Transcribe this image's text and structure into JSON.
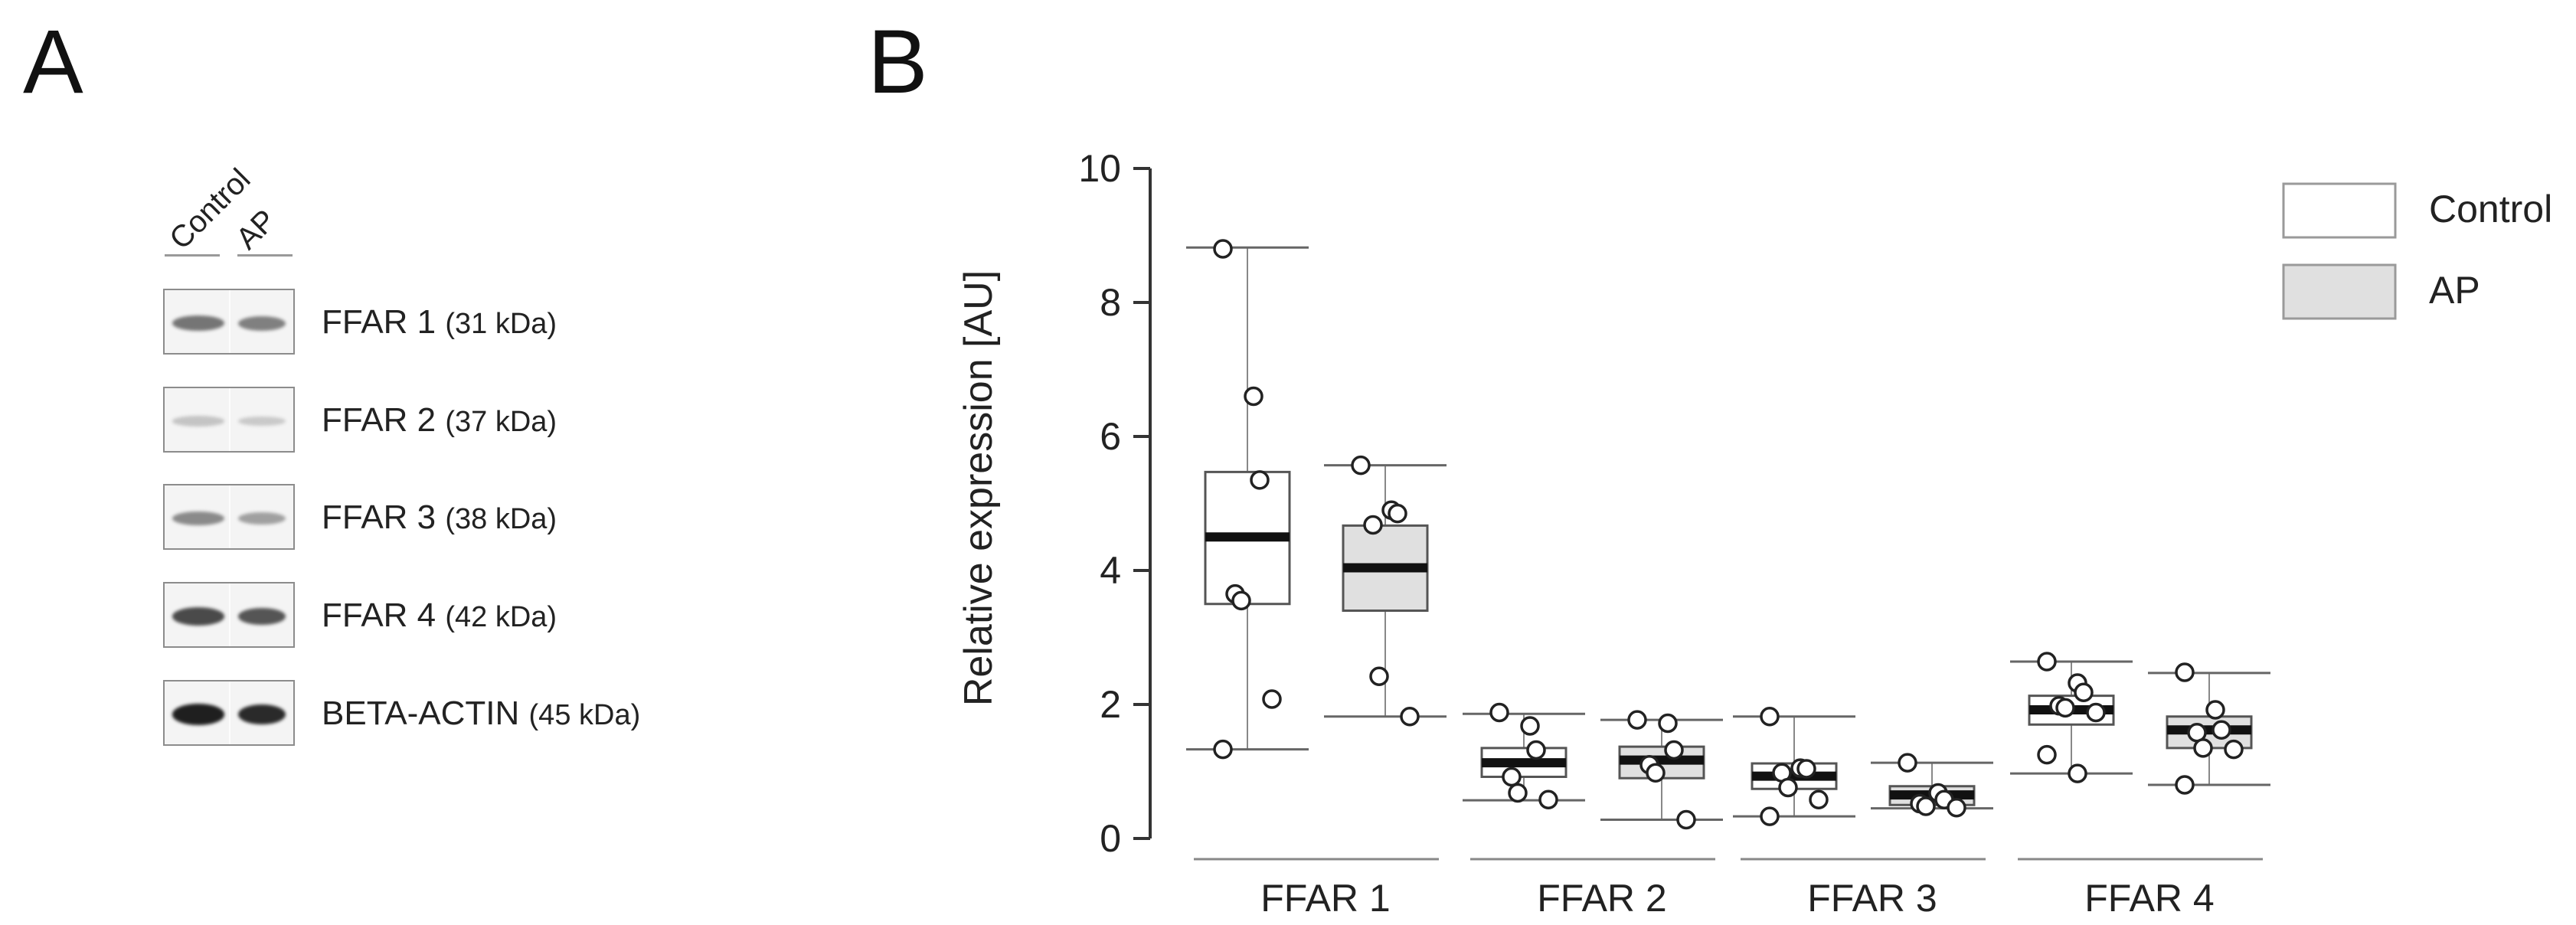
{
  "panel_a": {
    "letter": "A",
    "columns": [
      "Control",
      "AP"
    ],
    "rows": [
      {
        "protein": "FFAR 1",
        "mass": "(31 kDa)",
        "band_intensity": [
          0.55,
          0.5
        ]
      },
      {
        "protein": "FFAR 2",
        "mass": "(37 kDa)",
        "band_intensity": [
          0.18,
          0.16
        ]
      },
      {
        "protein": "FFAR 3",
        "mass": "(38 kDa)",
        "band_intensity": [
          0.45,
          0.35
        ]
      },
      {
        "protein": "FFAR 4",
        "mass": "(42 kDa)",
        "band_intensity": [
          0.75,
          0.7
        ]
      },
      {
        "protein": "BETA-ACTIN",
        "mass": "(45 kDa)",
        "band_intensity": [
          0.95,
          0.9
        ]
      }
    ]
  },
  "panel_b": {
    "letter": "B"
  },
  "chart_data": {
    "type": "box",
    "title": "",
    "xlabel": "",
    "ylabel": "Relative expression  [AU]",
    "ylim": [
      0,
      10
    ],
    "yticks": [
      0,
      2,
      4,
      6,
      8,
      10
    ],
    "categories": [
      "FFAR 1",
      "FFAR 2",
      "FFAR 3",
      "FFAR 4"
    ],
    "grid": false,
    "legend_position": "top-right",
    "series": [
      {
        "name": "Control",
        "color": "#ffffff",
        "boxes": [
          {
            "min": 1.33,
            "q1": 3.5,
            "median": 4.5,
            "q3": 5.47,
            "max": 8.82,
            "points": [
              8.8,
              6.6,
              5.35,
              3.65,
              3.55,
              2.08,
              1.33
            ]
          },
          {
            "min": 0.57,
            "q1": 0.92,
            "median": 1.13,
            "q3": 1.35,
            "max": 1.86,
            "points": [
              1.88,
              1.68,
              1.32,
              0.92,
              0.68,
              0.58
            ]
          },
          {
            "min": 0.33,
            "q1": 0.74,
            "median": 0.93,
            "q3": 1.12,
            "max": 1.82,
            "points": [
              1.82,
              1.05,
              1.04,
              0.98,
              0.76,
              0.58,
              0.33
            ]
          },
          {
            "min": 0.97,
            "q1": 1.7,
            "median": 1.92,
            "q3": 2.13,
            "max": 2.64,
            "points": [
              2.64,
              2.32,
              2.18,
              1.98,
              1.95,
              1.88,
              1.25,
              0.97
            ]
          }
        ]
      },
      {
        "name": "AP",
        "color": "#e0e0e0",
        "boxes": [
          {
            "min": 1.82,
            "q1": 3.4,
            "median": 4.04,
            "q3": 4.67,
            "max": 5.57,
            "points": [
              5.57,
              4.9,
              4.85,
              4.68,
              2.42,
              1.82
            ]
          },
          {
            "min": 0.28,
            "q1": 0.9,
            "median": 1.17,
            "q3": 1.37,
            "max": 1.77,
            "points": [
              1.77,
              1.72,
              1.32,
              1.1,
              0.98,
              0.28
            ]
          },
          {
            "min": 0.45,
            "q1": 0.5,
            "median": 0.65,
            "q3": 0.78,
            "max": 1.13,
            "points": [
              1.13,
              0.68,
              0.58,
              0.52,
              0.48,
              0.46
            ]
          },
          {
            "min": 0.8,
            "q1": 1.35,
            "median": 1.62,
            "q3": 1.82,
            "max": 2.47,
            "points": [
              2.48,
              1.92,
              1.62,
              1.58,
              1.35,
              1.33,
              0.8
            ]
          }
        ]
      }
    ]
  }
}
